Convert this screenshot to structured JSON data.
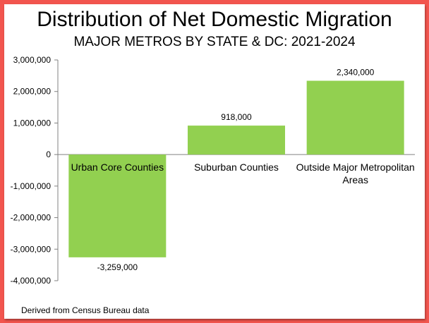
{
  "colors": {
    "border": "#f2554e",
    "bar": "#92d050",
    "axis": "#808080",
    "grid": "#d9d9d9"
  },
  "chart_data": {
    "type": "bar",
    "title": "Distribution of Net Domestic Migration",
    "subtitle": "MAJOR METROS BY STATE & DC: 2021-2024",
    "categories": [
      "Urban Core Counties",
      "Suburban Counties",
      "Outside Major Metropolitan Areas"
    ],
    "category_lines": [
      [
        "Urban Core Counties"
      ],
      [
        "Suburban Counties"
      ],
      [
        "Outside Major Metropolitan",
        "Areas"
      ]
    ],
    "values": [
      -3259000,
      918000,
      2340000
    ],
    "value_labels": [
      "-3,259,000",
      "918,000",
      "2,340,000"
    ],
    "ylim": [
      -4000000,
      3000000
    ],
    "yticks": [
      3000000,
      2000000,
      1000000,
      0,
      -1000000,
      -2000000,
      -3000000,
      -4000000
    ],
    "ytick_labels": [
      "3,000,000",
      "2,000,000",
      "1,000,000",
      "0",
      "-1,000,000",
      "-2,000,000",
      "-3,000,000",
      "-4,000,000"
    ],
    "xlabel": "",
    "ylabel": "",
    "grid": false,
    "legend": "none"
  },
  "footnote": "Derived from Census Bureau data"
}
